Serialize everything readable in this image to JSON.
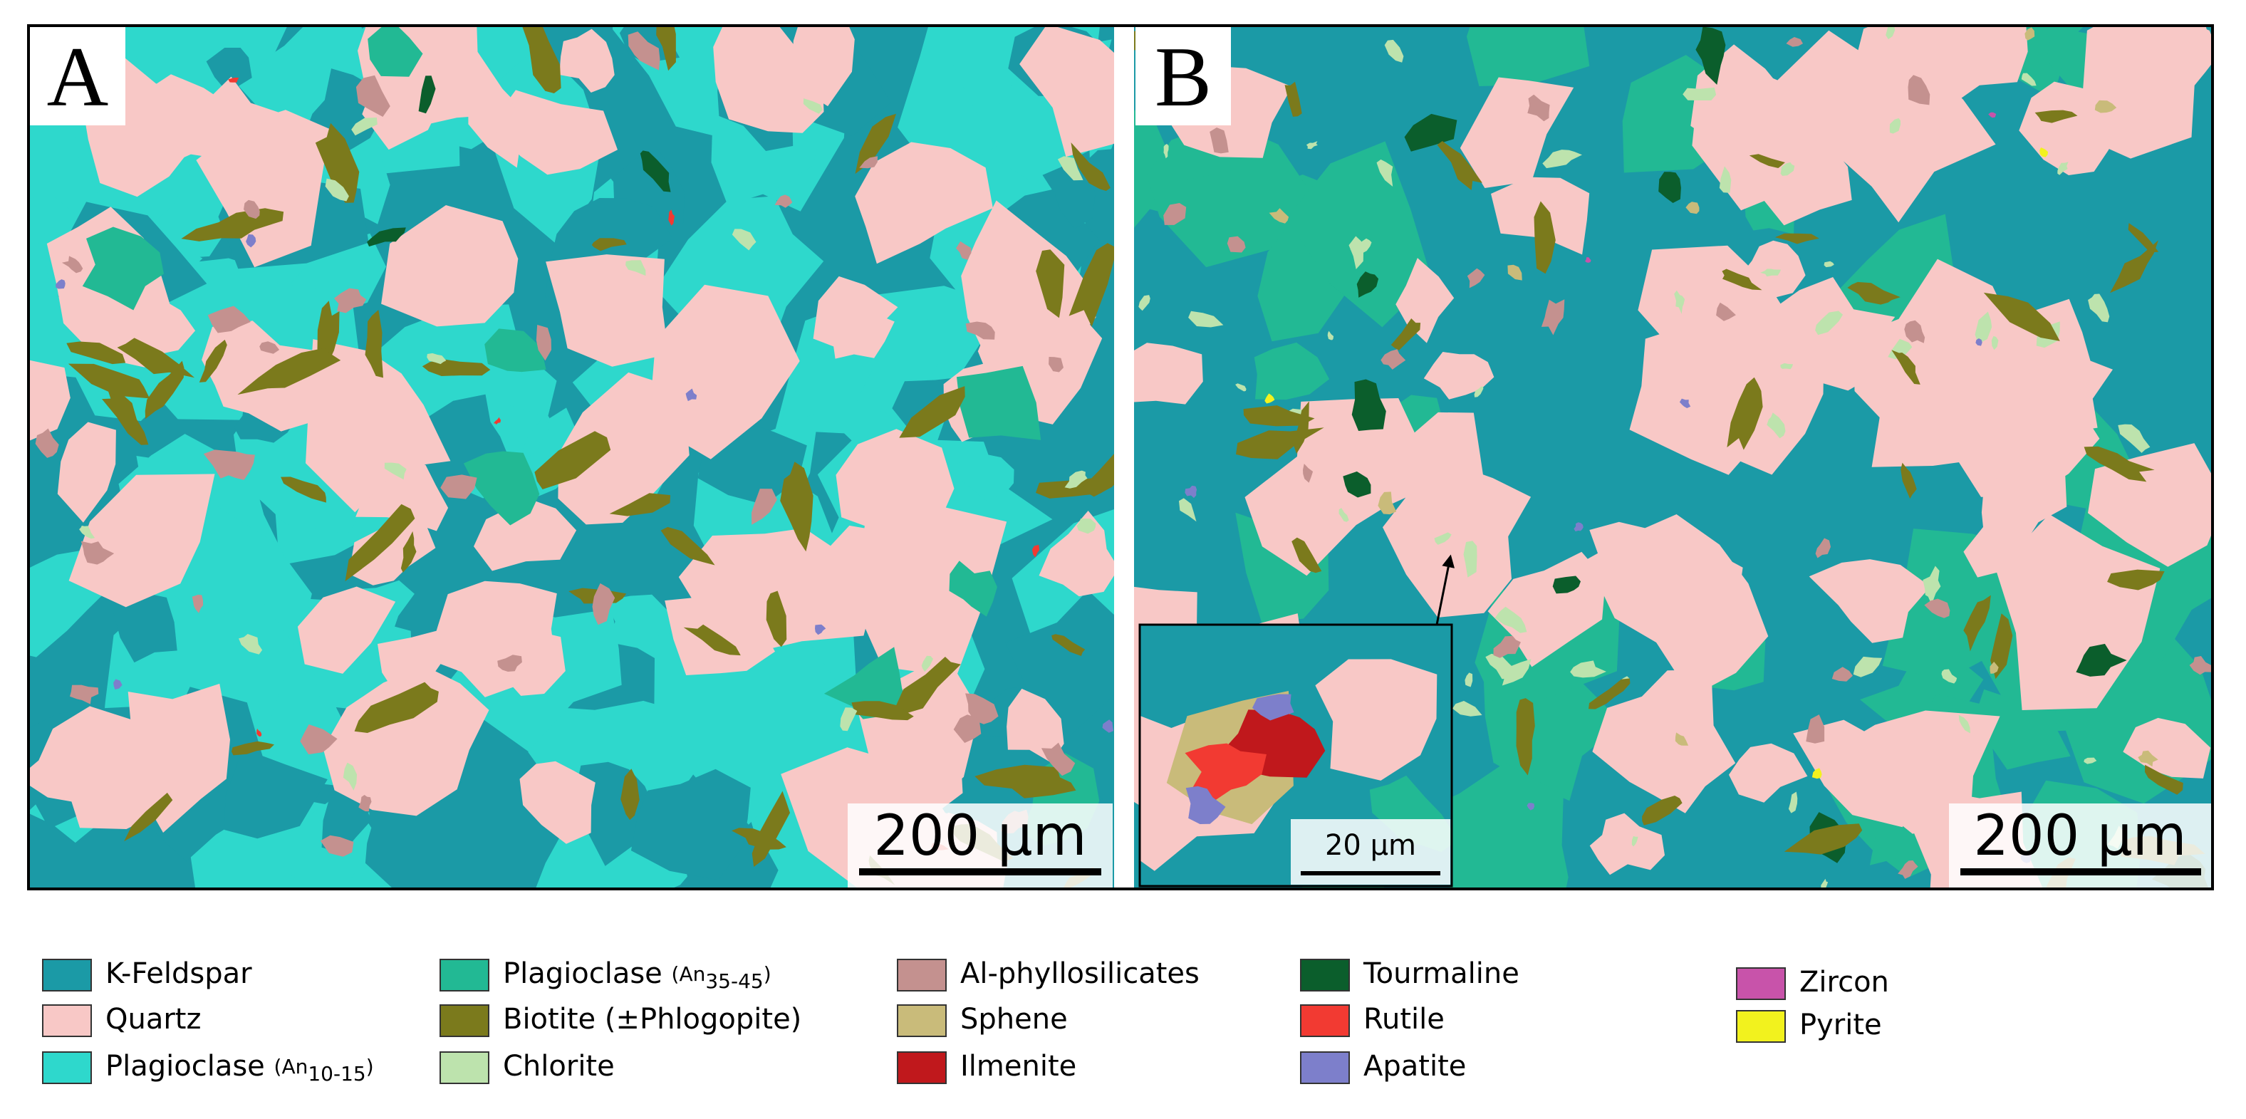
{
  "panels": [
    {
      "label": "A",
      "scale_bar": "200 µm"
    },
    {
      "label": "B",
      "scale_bar": "200 µm",
      "inset_scale_bar": "20 µm"
    }
  ],
  "legend": {
    "items": [
      {
        "name": "K-Feldspar",
        "color": "#1b9aa6"
      },
      {
        "name": "Quartz",
        "color": "#f8c8c6"
      },
      {
        "name": "Plagioclase ",
        "note": "(An",
        "sub": "10-15",
        "close": ")",
        "color": "#2ed8cc"
      },
      {
        "name": "Plagioclase ",
        "note": "(An",
        "sub": "35-45",
        "close": ")",
        "color": "#22b994"
      },
      {
        "name": "Biotite (±Phlogopite)",
        "color": "#7b7a1c"
      },
      {
        "name": "Chlorite",
        "color": "#bde3ad"
      },
      {
        "name": "Al-phyllosilicates",
        "color": "#c4918f"
      },
      {
        "name": "Sphene",
        "color": "#c9bb7a"
      },
      {
        "name": "Ilmenite",
        "color": "#c0181c"
      },
      {
        "name": "Tourmaline",
        "color": "#0b5e2c"
      },
      {
        "name": "Rutile",
        "color": "#f23a32"
      },
      {
        "name": "Apatite",
        "color": "#7d7fcb"
      },
      {
        "name": "Zircon",
        "color": "#c853aa"
      },
      {
        "name": "Pyrite",
        "color": "#f2f21e"
      }
    ]
  }
}
